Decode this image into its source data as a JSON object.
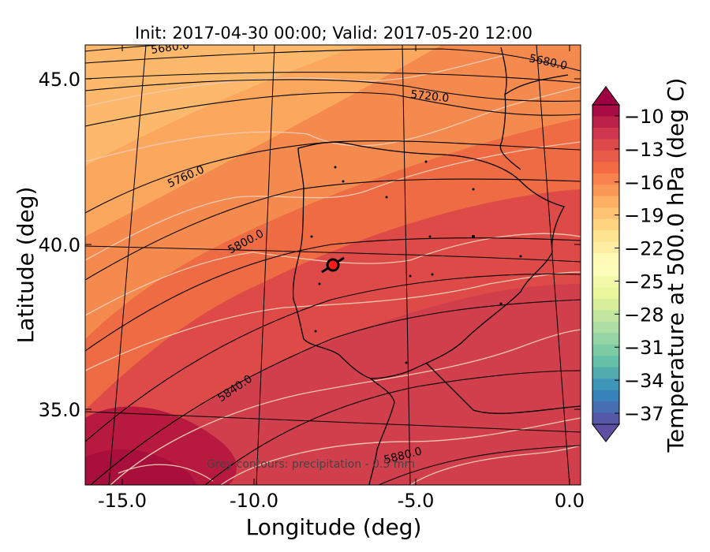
{
  "title": "Init: 2017-04-30 00:00; Valid: 2017-05-20 12:00",
  "xlabel": "Longitude (deg)",
  "ylabel": "Latitude (deg)",
  "colorbar_label": "Temperature at 500.0 hPa (deg C)",
  "annotation": "Grey contours: precipitation - 0.5 mm",
  "x_ticks": [
    "-15.0",
    "-10.0",
    "-5.0",
    "0.0"
  ],
  "y_ticks": [
    "45.0",
    "40.0",
    "35.0"
  ],
  "colorbar_ticks": [
    "−10",
    "−13",
    "−16",
    "−19",
    "−22",
    "−25",
    "−28",
    "−31",
    "−34",
    "−37"
  ],
  "contour_labels": [
    "5680.0",
    "5680.0",
    "5720.0",
    "5760.0",
    "5800.0",
    "5840.0",
    "5880.0"
  ],
  "chart_data": {
    "type": "heatmap",
    "title": "Init: 2017-04-30 00:00; Valid: 2017-05-20 12:00",
    "xlabel": "Longitude (deg)",
    "ylabel": "Latitude (deg)",
    "xlim": [
      -16,
      0.1
    ],
    "ylim": [
      32.8,
      46.1
    ],
    "x_ticks": [
      -15.0,
      -10.0,
      -5.0,
      0.0
    ],
    "y_ticks": [
      45.0,
      40.0,
      35.0
    ],
    "colorbar": {
      "label": "Temperature at 500.0 hPa (deg C)",
      "range": [
        -38,
        -9
      ],
      "ticks": [
        -10,
        -13,
        -16,
        -19,
        -22,
        -25,
        -28,
        -31,
        -34,
        -37
      ],
      "colormap": "Spectral"
    },
    "geopotential_contours": [
      5680.0,
      5720.0,
      5760.0,
      5800.0,
      5840.0,
      5880.0
    ],
    "marker": {
      "lon": -7.6,
      "lat": 39.3
    }
  }
}
